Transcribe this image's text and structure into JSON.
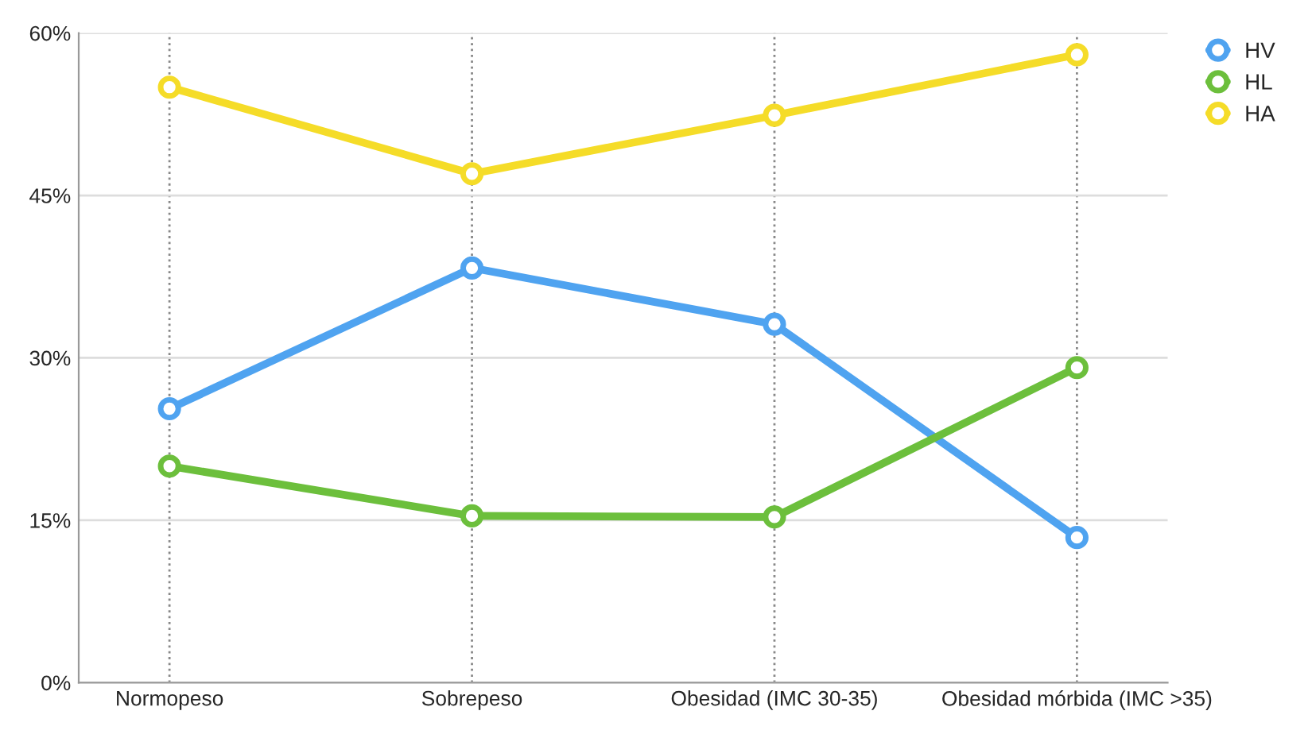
{
  "chart_data": {
    "type": "line",
    "categories": [
      "Normopeso",
      "Sobrepeso",
      "Obesidad (IMC 30-35)",
      "Obesidad mórbida (IMC >35)"
    ],
    "series": [
      {
        "name": "HV",
        "color": "#4fa3f0",
        "values": [
          25.3,
          38.3,
          33.1,
          13.4
        ]
      },
      {
        "name": "HL",
        "color": "#6cbf3c",
        "values": [
          20,
          15.4,
          15.3,
          29.1
        ]
      },
      {
        "name": "HA",
        "color": "#f5dc28",
        "values": [
          55,
          47,
          52.4,
          58
        ]
      }
    ],
    "ylim": [
      0,
      60
    ],
    "yticks": [
      {
        "value": 0,
        "label": "0%"
      },
      {
        "value": 15,
        "label": "15%"
      },
      {
        "value": 30,
        "label": "30%"
      },
      {
        "value": 45,
        "label": "45%"
      },
      {
        "value": 60,
        "label": "60%"
      }
    ],
    "grid": true,
    "legend": "top right",
    "marker": "circle",
    "line_style": "solid"
  }
}
